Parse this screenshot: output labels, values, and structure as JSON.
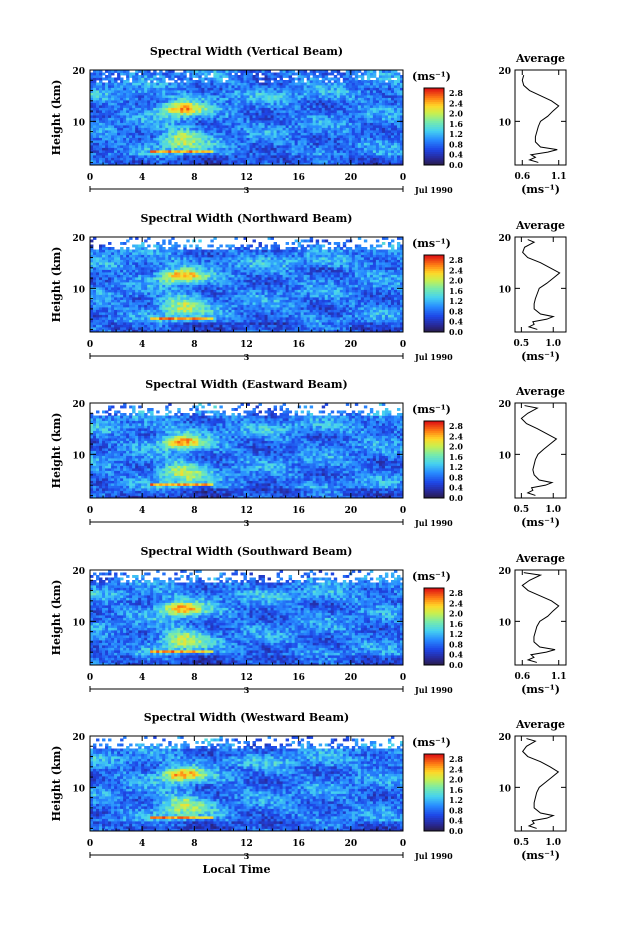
{
  "chart_data": [
    {
      "type": "heatmap",
      "title": "Spectral Width (Vertical Beam)",
      "ylabel": "Height (km)",
      "xticks": [
        "0",
        "4",
        "8",
        "12",
        "16",
        "20",
        "0"
      ],
      "yticks": [
        "10",
        "20"
      ],
      "date_marker": "3",
      "date_label": "Jul 1990",
      "xlim": [
        0,
        24
      ],
      "ylim": [
        1.5,
        20
      ],
      "colorbar": {
        "unit": "(ms⁻¹)",
        "ticks": [
          "2.8",
          "2.4",
          "2.0",
          "1.6",
          "1.2",
          "0.8",
          "0.4",
          "0.0"
        ],
        "range": [
          0,
          3.0
        ]
      },
      "profile": {
        "title": "Average",
        "xlabel": "(ms⁻¹)",
        "xticks": [
          "0.6",
          "1.1"
        ],
        "yticks": [
          "10",
          "20"
        ],
        "xlim": [
          0.5,
          1.2
        ],
        "heights": [
          2.0,
          2.5,
          3.0,
          3.5,
          4.0,
          4.5,
          5.0,
          6.0,
          7.0,
          8.0,
          9.0,
          10.0,
          11.0,
          12.0,
          13.0,
          14.0,
          15.0,
          16.0,
          17.0,
          18.0,
          19.0
        ],
        "values": [
          0.82,
          0.7,
          0.78,
          0.72,
          0.95,
          1.08,
          0.85,
          0.78,
          0.78,
          0.8,
          0.82,
          0.85,
          0.95,
          1.02,
          1.1,
          1.0,
          0.85,
          0.7,
          0.62,
          0.6,
          0.62
        ]
      }
    },
    {
      "type": "heatmap",
      "title": "Spectral Width (Northward Beam)",
      "ylabel": "Height (km)",
      "xticks": [
        "0",
        "4",
        "8",
        "12",
        "16",
        "20",
        "0"
      ],
      "yticks": [
        "10",
        "20"
      ],
      "date_marker": "3",
      "date_label": "Jul 1990",
      "xlim": [
        0,
        24
      ],
      "ylim": [
        1.5,
        20
      ],
      "colorbar": {
        "unit": "(ms⁻¹)",
        "ticks": [
          "2.8",
          "2.4",
          "2.0",
          "1.6",
          "1.2",
          "0.8",
          "0.4",
          "0.0"
        ],
        "range": [
          0,
          3.0
        ]
      },
      "profile": {
        "title": "Average",
        "xlabel": "(ms⁻¹)",
        "xticks": [
          "0.5",
          "1.0"
        ],
        "yticks": [
          "10",
          "20"
        ],
        "xlim": [
          0.4,
          1.2
        ],
        "heights": [
          2.0,
          2.5,
          3.0,
          3.5,
          4.0,
          4.5,
          5.0,
          6.0,
          7.0,
          8.0,
          9.0,
          10.0,
          11.0,
          12.0,
          13.0,
          14.0,
          15.0,
          16.0,
          17.0,
          18.0,
          19.0,
          19.5
        ],
        "values": [
          0.75,
          0.62,
          0.7,
          0.68,
          0.9,
          1.0,
          0.8,
          0.7,
          0.7,
          0.72,
          0.75,
          0.78,
          0.9,
          1.0,
          1.1,
          0.95,
          0.8,
          0.6,
          0.52,
          0.55,
          0.7,
          0.6
        ]
      }
    },
    {
      "type": "heatmap",
      "title": "Spectral Width (Eastward Beam)",
      "ylabel": "Height (km)",
      "xticks": [
        "0",
        "4",
        "8",
        "12",
        "16",
        "20",
        "0"
      ],
      "yticks": [
        "10",
        "20"
      ],
      "date_marker": "3",
      "date_label": "Jul 1990",
      "xlim": [
        0,
        24
      ],
      "ylim": [
        1.5,
        20
      ],
      "colorbar": {
        "unit": "(ms⁻¹)",
        "ticks": [
          "2.8",
          "2.4",
          "2.0",
          "1.6",
          "1.2",
          "0.8",
          "0.4",
          "0.0"
        ],
        "range": [
          0,
          3.0
        ]
      },
      "profile": {
        "title": "Average",
        "xlabel": "(ms⁻¹)",
        "xticks": [
          "0.5",
          "1.0"
        ],
        "yticks": [
          "10",
          "20"
        ],
        "xlim": [
          0.4,
          1.2
        ],
        "heights": [
          2.0,
          2.5,
          3.0,
          3.5,
          4.0,
          4.5,
          5.0,
          6.0,
          7.0,
          8.0,
          9.0,
          10.0,
          11.0,
          12.0,
          13.0,
          14.0,
          15.0,
          16.0,
          17.0,
          18.0,
          19.0,
          19.5
        ],
        "values": [
          0.72,
          0.6,
          0.68,
          0.66,
          0.88,
          0.98,
          0.78,
          0.7,
          0.68,
          0.7,
          0.72,
          0.76,
          0.85,
          0.95,
          1.05,
          0.9,
          0.75,
          0.58,
          0.5,
          0.6,
          0.75,
          0.55
        ]
      }
    },
    {
      "type": "heatmap",
      "title": "Spectral Width (Southward Beam)",
      "ylabel": "Height (km)",
      "xticks": [
        "0",
        "4",
        "8",
        "12",
        "16",
        "20",
        "0"
      ],
      "yticks": [
        "10",
        "20"
      ],
      "date_marker": "3",
      "date_label": "Jul 1990",
      "xlim": [
        0,
        24
      ],
      "ylim": [
        1.5,
        20
      ],
      "colorbar": {
        "unit": "(ms⁻¹)",
        "ticks": [
          "2.8",
          "2.4",
          "2.0",
          "1.6",
          "1.2",
          "0.8",
          "0.4",
          "0.0"
        ],
        "range": [
          0,
          3.0
        ]
      },
      "profile": {
        "title": "Average",
        "xlabel": "(ms⁻¹)",
        "xticks": [
          "0.6",
          "1.1"
        ],
        "yticks": [
          "10",
          "20"
        ],
        "xlim": [
          0.5,
          1.2
        ],
        "heights": [
          2.0,
          2.5,
          3.0,
          3.5,
          4.0,
          4.5,
          5.0,
          6.0,
          7.0,
          8.0,
          9.0,
          10.0,
          11.0,
          12.0,
          13.0,
          14.0,
          15.0,
          16.0,
          17.0,
          18.0,
          19.0,
          19.5
        ],
        "values": [
          0.8,
          0.68,
          0.76,
          0.72,
          0.93,
          1.05,
          0.84,
          0.76,
          0.76,
          0.78,
          0.8,
          0.84,
          0.95,
          1.02,
          1.1,
          1.0,
          0.84,
          0.68,
          0.6,
          0.7,
          0.85,
          0.62
        ]
      }
    },
    {
      "type": "heatmap",
      "title": "Spectral Width (Westward Beam)",
      "ylabel": "Height (km)",
      "xlabel": "Local Time",
      "xticks": [
        "0",
        "4",
        "8",
        "12",
        "16",
        "20",
        "0"
      ],
      "yticks": [
        "10",
        "20"
      ],
      "date_marker": "3",
      "date_label": "Jul 1990",
      "xlim": [
        0,
        24
      ],
      "ylim": [
        1.5,
        20
      ],
      "colorbar": {
        "unit": "(ms⁻¹)",
        "ticks": [
          "2.8",
          "2.4",
          "2.0",
          "1.6",
          "1.2",
          "0.8",
          "0.4",
          "0.0"
        ],
        "range": [
          0,
          3.0
        ]
      },
      "profile": {
        "title": "Average",
        "xlabel": "(ms⁻¹)",
        "xticks": [
          "0.5",
          "1.0"
        ],
        "yticks": [
          "10",
          "20"
        ],
        "xlim": [
          0.4,
          1.2
        ],
        "heights": [
          2.0,
          2.5,
          3.0,
          3.5,
          4.0,
          4.5,
          5.0,
          6.0,
          7.0,
          8.0,
          9.0,
          10.0,
          11.0,
          12.0,
          13.0,
          14.0,
          15.0,
          16.0,
          17.0,
          18.0,
          19.0,
          19.5
        ],
        "values": [
          0.74,
          0.62,
          0.7,
          0.67,
          0.9,
          1.0,
          0.8,
          0.7,
          0.7,
          0.72,
          0.74,
          0.78,
          0.88,
          0.98,
          1.08,
          0.95,
          0.8,
          0.6,
          0.52,
          0.58,
          0.72,
          0.58
        ]
      }
    }
  ]
}
